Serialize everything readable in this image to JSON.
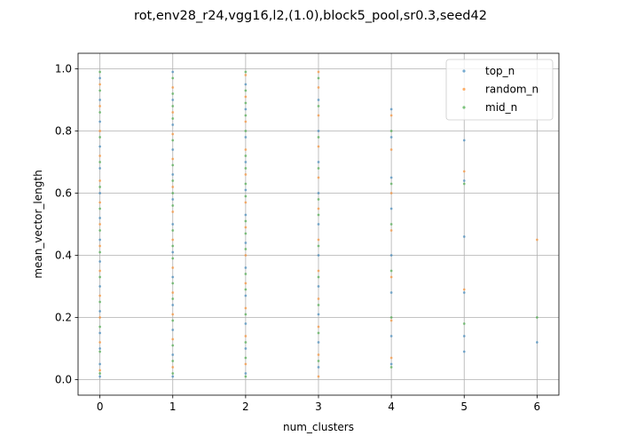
{
  "chart_data": {
    "type": "scatter",
    "title": "rot,env28_r24,vgg16,l2,(1.0),block5_pool,sr0.3,seed42",
    "xlabel": "num_clusters",
    "ylabel": "mean_vector_length",
    "xlim": [
      -0.3,
      6.3
    ],
    "ylim": [
      -0.05,
      1.05
    ],
    "x_ticks": [
      "0",
      "1",
      "2",
      "3",
      "4",
      "5",
      "6"
    ],
    "y_ticks": [
      "0.0",
      "0.2",
      "0.4",
      "0.6",
      "0.8",
      "1.0"
    ],
    "grid": true,
    "legend_position": "top-right",
    "series": [
      {
        "name": "top_n",
        "color": "#1f77b4",
        "points": [
          {
            "x": 0,
            "y": 0.01
          },
          {
            "x": 0,
            "y": 0.05
          },
          {
            "x": 0,
            "y": 0.1
          },
          {
            "x": 0,
            "y": 0.15
          },
          {
            "x": 0,
            "y": 0.22
          },
          {
            "x": 0,
            "y": 0.3
          },
          {
            "x": 0,
            "y": 0.38
          },
          {
            "x": 0,
            "y": 0.45
          },
          {
            "x": 0,
            "y": 0.52
          },
          {
            "x": 0,
            "y": 0.6
          },
          {
            "x": 0,
            "y": 0.68
          },
          {
            "x": 0,
            "y": 0.75
          },
          {
            "x": 0,
            "y": 0.83
          },
          {
            "x": 0,
            "y": 0.9
          },
          {
            "x": 0,
            "y": 0.97
          },
          {
            "x": 1,
            "y": 0.01
          },
          {
            "x": 1,
            "y": 0.08
          },
          {
            "x": 1,
            "y": 0.16
          },
          {
            "x": 1,
            "y": 0.24
          },
          {
            "x": 1,
            "y": 0.33
          },
          {
            "x": 1,
            "y": 0.41
          },
          {
            "x": 1,
            "y": 0.5
          },
          {
            "x": 1,
            "y": 0.58
          },
          {
            "x": 1,
            "y": 0.66
          },
          {
            "x": 1,
            "y": 0.74
          },
          {
            "x": 1,
            "y": 0.82
          },
          {
            "x": 1,
            "y": 0.9
          },
          {
            "x": 1,
            "y": 0.99
          },
          {
            "x": 2,
            "y": 0.02
          },
          {
            "x": 2,
            "y": 0.1
          },
          {
            "x": 2,
            "y": 0.18
          },
          {
            "x": 2,
            "y": 0.27
          },
          {
            "x": 2,
            "y": 0.36
          },
          {
            "x": 2,
            "y": 0.44
          },
          {
            "x": 2,
            "y": 0.53
          },
          {
            "x": 2,
            "y": 0.61
          },
          {
            "x": 2,
            "y": 0.7
          },
          {
            "x": 2,
            "y": 0.78
          },
          {
            "x": 2,
            "y": 0.87
          },
          {
            "x": 2,
            "y": 0.95
          },
          {
            "x": 3,
            "y": 0.04
          },
          {
            "x": 3,
            "y": 0.12
          },
          {
            "x": 3,
            "y": 0.21
          },
          {
            "x": 3,
            "y": 0.3
          },
          {
            "x": 3,
            "y": 0.4
          },
          {
            "x": 3,
            "y": 0.5
          },
          {
            "x": 3,
            "y": 0.6
          },
          {
            "x": 3,
            "y": 0.7
          },
          {
            "x": 3,
            "y": 0.8
          },
          {
            "x": 3,
            "y": 0.9
          },
          {
            "x": 4,
            "y": 0.05
          },
          {
            "x": 4,
            "y": 0.14
          },
          {
            "x": 4,
            "y": 0.28
          },
          {
            "x": 4,
            "y": 0.4
          },
          {
            "x": 4,
            "y": 0.55
          },
          {
            "x": 4,
            "y": 0.65
          },
          {
            "x": 4,
            "y": 0.78
          },
          {
            "x": 4,
            "y": 0.87
          },
          {
            "x": 5,
            "y": 0.09
          },
          {
            "x": 5,
            "y": 0.14
          },
          {
            "x": 5,
            "y": 0.28
          },
          {
            "x": 5,
            "y": 0.46
          },
          {
            "x": 5,
            "y": 0.64
          },
          {
            "x": 5,
            "y": 0.77
          },
          {
            "x": 6,
            "y": 0.12
          }
        ]
      },
      {
        "name": "random_n",
        "color": "#ff7f0e",
        "points": [
          {
            "x": 0,
            "y": 0.03
          },
          {
            "x": 0,
            "y": 0.12
          },
          {
            "x": 0,
            "y": 0.2
          },
          {
            "x": 0,
            "y": 0.27
          },
          {
            "x": 0,
            "y": 0.35
          },
          {
            "x": 0,
            "y": 0.43
          },
          {
            "x": 0,
            "y": 0.5
          },
          {
            "x": 0,
            "y": 0.57
          },
          {
            "x": 0,
            "y": 0.64
          },
          {
            "x": 0,
            "y": 0.72
          },
          {
            "x": 0,
            "y": 0.8
          },
          {
            "x": 0,
            "y": 0.88
          },
          {
            "x": 0,
            "y": 0.95
          },
          {
            "x": 1,
            "y": 0.04
          },
          {
            "x": 1,
            "y": 0.13
          },
          {
            "x": 1,
            "y": 0.21
          },
          {
            "x": 1,
            "y": 0.28
          },
          {
            "x": 1,
            "y": 0.36
          },
          {
            "x": 1,
            "y": 0.45
          },
          {
            "x": 1,
            "y": 0.54
          },
          {
            "x": 1,
            "y": 0.62
          },
          {
            "x": 1,
            "y": 0.71
          },
          {
            "x": 1,
            "y": 0.79
          },
          {
            "x": 1,
            "y": 0.86
          },
          {
            "x": 1,
            "y": 0.94
          },
          {
            "x": 2,
            "y": 0.05
          },
          {
            "x": 2,
            "y": 0.14
          },
          {
            "x": 2,
            "y": 0.23
          },
          {
            "x": 2,
            "y": 0.31
          },
          {
            "x": 2,
            "y": 0.4
          },
          {
            "x": 2,
            "y": 0.49
          },
          {
            "x": 2,
            "y": 0.57
          },
          {
            "x": 2,
            "y": 0.66
          },
          {
            "x": 2,
            "y": 0.74
          },
          {
            "x": 2,
            "y": 0.83
          },
          {
            "x": 2,
            "y": 0.91
          },
          {
            "x": 2,
            "y": 0.98
          },
          {
            "x": 3,
            "y": 0.01
          },
          {
            "x": 3,
            "y": 0.08
          },
          {
            "x": 3,
            "y": 0.17
          },
          {
            "x": 3,
            "y": 0.26
          },
          {
            "x": 3,
            "y": 0.35
          },
          {
            "x": 3,
            "y": 0.45
          },
          {
            "x": 3,
            "y": 0.55
          },
          {
            "x": 3,
            "y": 0.65
          },
          {
            "x": 3,
            "y": 0.75
          },
          {
            "x": 3,
            "y": 0.85
          },
          {
            "x": 3,
            "y": 0.94
          },
          {
            "x": 3,
            "y": 0.99
          },
          {
            "x": 4,
            "y": 0.07
          },
          {
            "x": 4,
            "y": 0.19
          },
          {
            "x": 4,
            "y": 0.33
          },
          {
            "x": 4,
            "y": 0.48
          },
          {
            "x": 4,
            "y": 0.6
          },
          {
            "x": 4,
            "y": 0.74
          },
          {
            "x": 4,
            "y": 0.85
          },
          {
            "x": 5,
            "y": 0.29
          },
          {
            "x": 5,
            "y": 0.67
          },
          {
            "x": 6,
            "y": 0.45
          }
        ]
      },
      {
        "name": "mid_n",
        "color": "#2ca02c",
        "points": [
          {
            "x": 0,
            "y": 0.02
          },
          {
            "x": 0,
            "y": 0.09
          },
          {
            "x": 0,
            "y": 0.17
          },
          {
            "x": 0,
            "y": 0.25
          },
          {
            "x": 0,
            "y": 0.33
          },
          {
            "x": 0,
            "y": 0.41
          },
          {
            "x": 0,
            "y": 0.48
          },
          {
            "x": 0,
            "y": 0.55
          },
          {
            "x": 0,
            "y": 0.62
          },
          {
            "x": 0,
            "y": 0.7
          },
          {
            "x": 0,
            "y": 0.78
          },
          {
            "x": 0,
            "y": 0.86
          },
          {
            "x": 0,
            "y": 0.93
          },
          {
            "x": 0,
            "y": 0.99
          },
          {
            "x": 1,
            "y": 0.02
          },
          {
            "x": 1,
            "y": 0.06
          },
          {
            "x": 1,
            "y": 0.11
          },
          {
            "x": 1,
            "y": 0.19
          },
          {
            "x": 1,
            "y": 0.26
          },
          {
            "x": 1,
            "y": 0.31
          },
          {
            "x": 1,
            "y": 0.39
          },
          {
            "x": 1,
            "y": 0.43
          },
          {
            "x": 1,
            "y": 0.48
          },
          {
            "x": 1,
            "y": 0.56
          },
          {
            "x": 1,
            "y": 0.6
          },
          {
            "x": 1,
            "y": 0.64
          },
          {
            "x": 1,
            "y": 0.69
          },
          {
            "x": 1,
            "y": 0.77
          },
          {
            "x": 1,
            "y": 0.84
          },
          {
            "x": 1,
            "y": 0.88
          },
          {
            "x": 1,
            "y": 0.92
          },
          {
            "x": 1,
            "y": 0.97
          },
          {
            "x": 2,
            "y": 0.01
          },
          {
            "x": 2,
            "y": 0.07
          },
          {
            "x": 2,
            "y": 0.12
          },
          {
            "x": 2,
            "y": 0.21
          },
          {
            "x": 2,
            "y": 0.29
          },
          {
            "x": 2,
            "y": 0.34
          },
          {
            "x": 2,
            "y": 0.42
          },
          {
            "x": 2,
            "y": 0.47
          },
          {
            "x": 2,
            "y": 0.51
          },
          {
            "x": 2,
            "y": 0.59
          },
          {
            "x": 2,
            "y": 0.63
          },
          {
            "x": 2,
            "y": 0.68
          },
          {
            "x": 2,
            "y": 0.72
          },
          {
            "x": 2,
            "y": 0.8
          },
          {
            "x": 2,
            "y": 0.85
          },
          {
            "x": 2,
            "y": 0.89
          },
          {
            "x": 2,
            "y": 0.93
          },
          {
            "x": 2,
            "y": 0.99
          },
          {
            "x": 3,
            "y": 0.06
          },
          {
            "x": 3,
            "y": 0.15
          },
          {
            "x": 3,
            "y": 0.24
          },
          {
            "x": 3,
            "y": 0.33
          },
          {
            "x": 3,
            "y": 0.43
          },
          {
            "x": 3,
            "y": 0.53
          },
          {
            "x": 3,
            "y": 0.58
          },
          {
            "x": 3,
            "y": 0.68
          },
          {
            "x": 3,
            "y": 0.78
          },
          {
            "x": 3,
            "y": 0.88
          },
          {
            "x": 3,
            "y": 0.97
          },
          {
            "x": 4,
            "y": 0.04
          },
          {
            "x": 4,
            "y": 0.2
          },
          {
            "x": 4,
            "y": 0.35
          },
          {
            "x": 4,
            "y": 0.5
          },
          {
            "x": 4,
            "y": 0.63
          },
          {
            "x": 4,
            "y": 0.8
          },
          {
            "x": 5,
            "y": 0.18
          },
          {
            "x": 5,
            "y": 0.63
          },
          {
            "x": 6,
            "y": 0.2
          }
        ]
      }
    ]
  }
}
